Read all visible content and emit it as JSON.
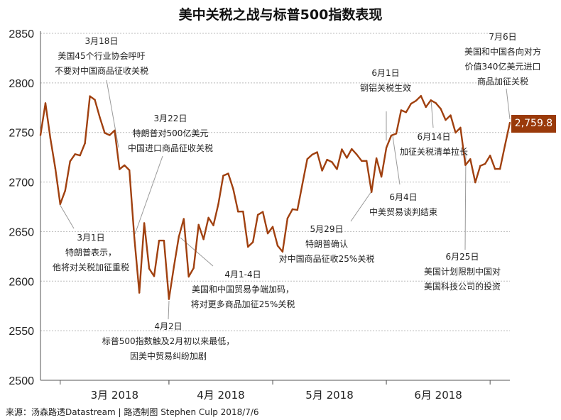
{
  "title": "美中关税之战与标普500指数表现",
  "footer": "来源：汤森路透Datastream | 路透制图 Stephen Culp 2018/7/6",
  "colors": {
    "line": "#a0400f",
    "label_bg": "#9a3a0a",
    "grid": "#bbbbbb"
  },
  "chart_data": {
    "type": "line",
    "title": "美中关税之战与标普500指数表现",
    "ylim": [
      2500,
      2850
    ],
    "yticks": [
      2500,
      2550,
      2600,
      2650,
      2700,
      2750,
      2800,
      2850
    ],
    "ytick_labels": [
      "2500",
      "2550",
      "2600",
      "2650",
      "2700",
      "2750",
      "2800",
      "2850"
    ],
    "grid": true,
    "month_ticks": [
      {
        "label": "3月 2018",
        "start": "2018-03-01",
        "end": "2018-04-02"
      },
      {
        "label": "4月 2018",
        "start": "2018-04-02",
        "end": "2018-05-01"
      },
      {
        "label": "5月 2018",
        "start": "2018-05-01",
        "end": "2018-06-01"
      },
      {
        "label": "6月 2018",
        "start": "2018-06-01",
        "end": "2018-07-02"
      }
    ],
    "last_value_label": "2,759.8",
    "x": [
      "2018-02-23",
      "2018-02-26",
      "2018-02-27",
      "2018-02-28",
      "2018-03-01",
      "2018-03-02",
      "2018-03-05",
      "2018-03-06",
      "2018-03-07",
      "2018-03-08",
      "2018-03-09",
      "2018-03-12",
      "2018-03-13",
      "2018-03-14",
      "2018-03-15",
      "2018-03-16",
      "2018-03-19",
      "2018-03-20",
      "2018-03-21",
      "2018-03-22",
      "2018-03-23",
      "2018-03-26",
      "2018-03-27",
      "2018-03-28",
      "2018-03-29",
      "2018-03-30",
      "2018-04-02",
      "2018-04-03",
      "2018-04-04",
      "2018-04-05",
      "2018-04-06",
      "2018-04-09",
      "2018-04-10",
      "2018-04-11",
      "2018-04-12",
      "2018-04-13",
      "2018-04-16",
      "2018-04-17",
      "2018-04-18",
      "2018-04-19",
      "2018-04-20",
      "2018-04-23",
      "2018-04-24",
      "2018-04-25",
      "2018-04-26",
      "2018-04-27",
      "2018-04-30",
      "2018-05-01",
      "2018-05-02",
      "2018-05-03",
      "2018-05-04",
      "2018-05-07",
      "2018-05-08",
      "2018-05-09",
      "2018-05-10",
      "2018-05-11",
      "2018-05-14",
      "2018-05-15",
      "2018-05-16",
      "2018-05-17",
      "2018-05-18",
      "2018-05-21",
      "2018-05-22",
      "2018-05-23",
      "2018-05-24",
      "2018-05-25",
      "2018-05-28",
      "2018-05-29",
      "2018-05-30",
      "2018-05-31",
      "2018-06-01",
      "2018-06-04",
      "2018-06-05",
      "2018-06-06",
      "2018-06-07",
      "2018-06-08",
      "2018-06-11",
      "2018-06-12",
      "2018-06-13",
      "2018-06-14",
      "2018-06-15",
      "2018-06-18",
      "2018-06-19",
      "2018-06-20",
      "2018-06-21",
      "2018-06-22",
      "2018-06-25",
      "2018-06-26",
      "2018-06-27",
      "2018-06-28",
      "2018-06-29",
      "2018-07-02",
      "2018-07-03",
      "2018-07-04",
      "2018-07-05",
      "2018-07-06"
    ],
    "values": [
      2747.3,
      2779.6,
      2744.3,
      2713.8,
      2677.7,
      2691.3,
      2720.9,
      2728.1,
      2726.8,
      2739.0,
      2786.6,
      2783.0,
      2765.3,
      2749.5,
      2747.3,
      2752.0,
      2712.9,
      2716.9,
      2711.9,
      2643.7,
      2588.3,
      2658.6,
      2612.6,
      2605.0,
      2640.9,
      2640.9,
      2581.9,
      2614.5,
      2644.7,
      2662.8,
      2604.5,
      2613.2,
      2656.9,
      2642.2,
      2664.0,
      2656.3,
      2677.8,
      2706.4,
      2708.6,
      2693.1,
      2670.1,
      2670.3,
      2634.6,
      2639.4,
      2666.9,
      2669.9,
      2648.1,
      2654.8,
      2635.7,
      2629.7,
      2663.4,
      2672.6,
      2671.9,
      2697.8,
      2723.1,
      2727.7,
      2730.1,
      2711.5,
      2722.5,
      2720.1,
      2713.0,
      2733.0,
      2724.4,
      2733.3,
      2727.8,
      2721.3,
      2721.3,
      2689.9,
      2724.0,
      2705.3,
      2734.6,
      2746.9,
      2748.8,
      2772.4,
      2770.4,
      2779.0,
      2782.0,
      2786.9,
      2775.6,
      2782.5,
      2779.7,
      2773.9,
      2762.6,
      2767.3,
      2749.8,
      2754.9,
      2717.1,
      2723.1,
      2699.6,
      2716.3,
      2718.4,
      2726.7,
      2713.2,
      2713.2,
      2736.6,
      2759.8
    ],
    "annotations": [
      {
        "id": "mar18",
        "lines": [
          "3月18日",
          "美国45个行业协会呼吁",
          "不要对中国商品征收关税"
        ]
      },
      {
        "id": "mar22",
        "lines": [
          "3月22日",
          "特朗普对500亿美元",
          "中国进口商品征收关税"
        ]
      },
      {
        "id": "mar1",
        "lines": [
          "3月1日",
          "特朗普表示，",
          "他将对关税加征重税"
        ]
      },
      {
        "id": "apr14",
        "lines": [
          "4月1-4日",
          "美国和中国贸易争端加码，",
          "将对更多商品加征25%关税"
        ]
      },
      {
        "id": "apr2",
        "lines": [
          "4月2日",
          "标普500指数触及2月初以来最低，",
          "因美中贸易纠纷加剧"
        ]
      },
      {
        "id": "may29",
        "lines": [
          "5月29日",
          "特朗普确认",
          "对中国商品征收25%关税"
        ]
      },
      {
        "id": "jun1",
        "lines": [
          "6月1日",
          "钢铝关税生效"
        ]
      },
      {
        "id": "jun4",
        "lines": [
          "6月4日",
          "中美贸易谈判结束"
        ]
      },
      {
        "id": "jun14",
        "lines": [
          "6月14日",
          "加征关税清单拉长"
        ]
      },
      {
        "id": "jun25",
        "lines": [
          "6月25日",
          "美国计划限制中国对",
          "美国科技公司的投资"
        ]
      },
      {
        "id": "jul6",
        "lines": [
          "7月6日",
          "美国和中国各向对方",
          "价值340亿美元进口",
          "商品加征关税"
        ]
      }
    ]
  }
}
